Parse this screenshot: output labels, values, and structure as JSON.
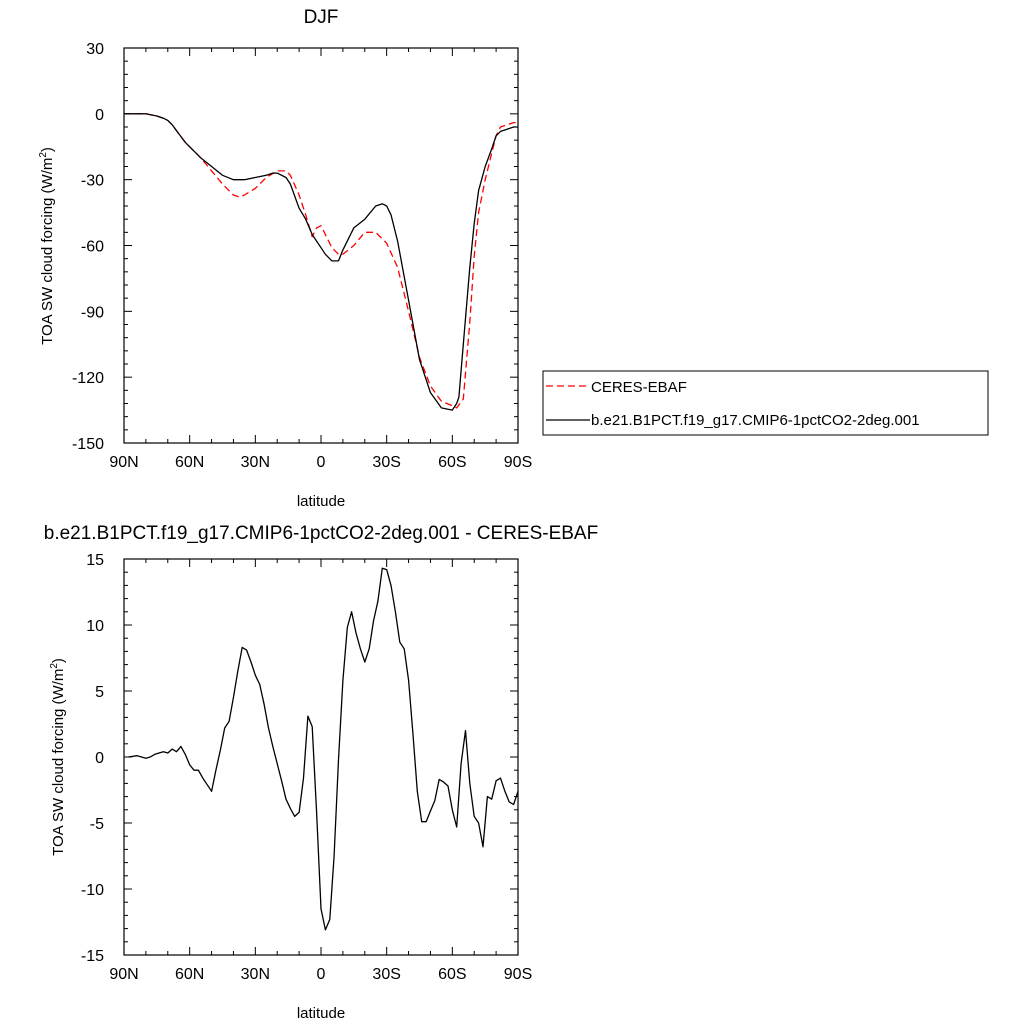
{
  "chart_data": [
    {
      "type": "line",
      "title": "DJF",
      "xlabel": "latitude",
      "ylabel_main": "TOA SW cloud forcing (W/m",
      "ylabel_sup": "2",
      "ylabel_close": ")",
      "xlim": [
        90,
        -90
      ],
      "ylim": [
        -150,
        30
      ],
      "x_ticks": [
        90,
        60,
        30,
        0,
        -30,
        -60,
        -90
      ],
      "x_tick_labels": [
        "90N",
        "60N",
        "30N",
        "0",
        "30S",
        "60S",
        "90S"
      ],
      "y_ticks": [
        30,
        0,
        -30,
        -60,
        -90,
        -120,
        -150
      ],
      "y_tick_labels": [
        "30",
        "0",
        "-30",
        "-60",
        "-90",
        "-120",
        "-150"
      ],
      "grid": false,
      "legend_position": "right",
      "series": [
        {
          "name": "CERES-EBAF",
          "color": "#ff0000",
          "dash": "dashed",
          "x": [
            90,
            85,
            80,
            75,
            72,
            70,
            68,
            65,
            62,
            60,
            55,
            50,
            45,
            40,
            37,
            35,
            30,
            25,
            20,
            16,
            14,
            10,
            7,
            4,
            2,
            0,
            -2,
            -5,
            -8,
            -10,
            -15,
            -20,
            -25,
            -30,
            -35,
            -40,
            -45,
            -50,
            -55,
            -60,
            -62,
            -65,
            -68,
            -70,
            -72,
            -75,
            -78,
            -80,
            -82,
            -85,
            -88,
            -90
          ],
          "y": [
            0,
            0,
            0,
            -1,
            -2,
            -3,
            -5,
            -9,
            -13,
            -15,
            -20,
            -26,
            -32,
            -37,
            -38,
            -37,
            -34,
            -29,
            -26,
            -26,
            -28,
            -37,
            -46,
            -56,
            -52,
            -51,
            -55,
            -61,
            -64,
            -64,
            -60,
            -54,
            -54,
            -59,
            -70,
            -90,
            -111,
            -124,
            -131,
            -133,
            -134,
            -130,
            -95,
            -65,
            -45,
            -30,
            -18,
            -10,
            -6,
            -5,
            -4,
            -4
          ]
        },
        {
          "name": "b.e21.B1PCT.f19_g17.CMIP6-1pctCO2-2deg.001",
          "color": "#000000",
          "dash": "solid",
          "x": [
            90,
            85,
            80,
            75,
            72,
            70,
            68,
            65,
            62,
            60,
            55,
            50,
            45,
            40,
            37,
            35,
            30,
            25,
            22,
            20,
            16,
            14,
            10,
            7,
            4,
            2,
            0,
            -2,
            -5,
            -8,
            -10,
            -15,
            -20,
            -25,
            -28,
            -30,
            -32,
            -35,
            -40,
            -45,
            -50,
            -55,
            -60,
            -62,
            -63,
            -65,
            -68,
            -70,
            -72,
            -75,
            -78,
            -80,
            -82,
            -85,
            -88,
            -90
          ],
          "y": [
            0,
            0,
            0,
            -1,
            -2,
            -3,
            -5,
            -9,
            -13,
            -15,
            -20,
            -24,
            -28,
            -30,
            -30,
            -30,
            -29,
            -28,
            -27,
            -27,
            -29,
            -32,
            -43,
            -48,
            -55,
            -58,
            -61,
            -64,
            -67,
            -67,
            -62,
            -52,
            -48,
            -42,
            -41,
            -42,
            -46,
            -58,
            -85,
            -112,
            -127,
            -134,
            -135,
            -132,
            -129,
            -105,
            -70,
            -50,
            -35,
            -24,
            -16,
            -10,
            -8,
            -7,
            -6,
            -6
          ]
        }
      ]
    },
    {
      "type": "line",
      "title": "b.e21.B1PCT.f19_g17.CMIP6-1pctCO2-2deg.001 - CERES-EBAF",
      "xlabel": "latitude",
      "ylabel_main": "TOA SW cloud forcing (W/m",
      "ylabel_sup": "2",
      "ylabel_close": ")",
      "xlim": [
        90,
        -90
      ],
      "ylim": [
        -15,
        15
      ],
      "x_ticks": [
        90,
        60,
        30,
        0,
        -30,
        -60,
        -90
      ],
      "x_tick_labels": [
        "90N",
        "60N",
        "30N",
        "0",
        "30S",
        "60S",
        "90S"
      ],
      "y_ticks": [
        15,
        10,
        5,
        0,
        -5,
        -10,
        -15
      ],
      "y_tick_labels": [
        "15",
        "10",
        "5",
        "0",
        "-5",
        "-10",
        "-15"
      ],
      "grid": false,
      "series": [
        {
          "name": "b.e21.B1PCT.f19_g17.CMIP6-1pctCO2-2deg.001 - CERES-EBAF",
          "color": "#000000",
          "dash": "solid",
          "x": [
            88,
            84,
            82,
            80,
            78,
            76,
            74,
            72,
            70,
            68,
            66,
            64,
            62,
            60,
            58,
            56,
            54,
            52,
            50,
            48,
            46,
            44,
            42,
            40,
            38,
            36,
            34,
            32,
            30,
            28,
            26,
            24,
            22,
            20,
            18,
            16,
            14,
            12,
            10,
            8,
            6,
            4,
            2,
            0,
            -2,
            -4,
            -6,
            -8,
            -10,
            -12,
            -14,
            -16,
            -18,
            -20,
            -22,
            -24,
            -26,
            -28,
            -30,
            -32,
            -34,
            -36,
            -38,
            -40,
            -42,
            -44,
            -46,
            -48,
            -50,
            -52,
            -54,
            -56,
            -58,
            -60,
            -62,
            -64,
            -66,
            -68,
            -70,
            -72,
            -74,
            -76,
            -78,
            -80,
            -82,
            -84,
            -86,
            -88,
            -90
          ],
          "y": [
            0,
            0.1,
            0,
            -0.1,
            0,
            0.2,
            0.3,
            0.4,
            0.3,
            0.6,
            0.4,
            0.8,
            0.2,
            -0.6,
            -1,
            -1,
            -1.6,
            -2.1,
            -2.6,
            -1,
            0.5,
            2.2,
            2.7,
            4.5,
            6.5,
            8.3,
            8.1,
            7.2,
            6.2,
            5.5,
            4,
            2.2,
            0.8,
            -0.5,
            -1.8,
            -3.2,
            -3.9,
            -4.5,
            -4.2,
            -1.6,
            3.1,
            2.3,
            -4.2,
            -11.5,
            -13.1,
            -12.3,
            -7.5,
            -0.2,
            5.8,
            9.8,
            11,
            9.4,
            8.2,
            7.2,
            8.2,
            10.3,
            11.8,
            14.3,
            14.2,
            13,
            11,
            8.7,
            8.2,
            5.8,
            1.8,
            -2.6,
            -4.9,
            -4.9,
            -4.1,
            -3.3,
            -1.7,
            -1.9,
            -2.2,
            -4,
            -5.3,
            -0.5,
            2,
            -2,
            -4.5,
            -5,
            -6.8,
            -3,
            -3.2,
            -1.8,
            -1.6,
            -2.6,
            -3.4,
            -3.6,
            -2.6
          ]
        }
      ]
    }
  ]
}
